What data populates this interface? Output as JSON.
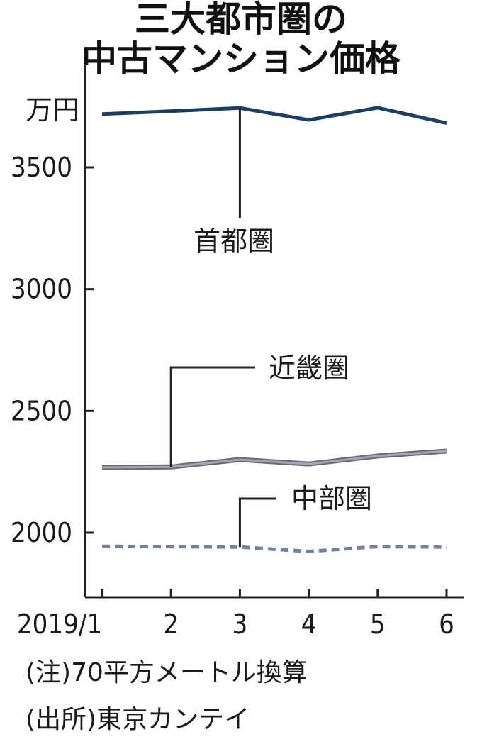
{
  "chart_data": {
    "type": "line",
    "title": [
      "三大都市圏の",
      "中古マンション価格"
    ],
    "unit": "万円",
    "categories": [
      "2019/1",
      "2",
      "3",
      "4",
      "5",
      "6"
    ],
    "ylim": [
      1750,
      3850
    ],
    "yticks": [
      2000,
      2500,
      3000,
      3500
    ],
    "grid": false,
    "series": [
      {
        "name": "首都圏",
        "values": [
          3719,
          3731,
          3744,
          3695,
          3745,
          3682
        ],
        "color": "#1d3f5e",
        "style": "solid"
      },
      {
        "name": "近畿圏",
        "values": [
          2268,
          2270,
          2300,
          2282,
          2315,
          2335
        ],
        "color": "#a8a4b3",
        "style": "solid-outlined"
      },
      {
        "name": "中部圏",
        "values": [
          1944,
          1943,
          1941,
          1923,
          1943,
          1941
        ],
        "color": "#6f82a0",
        "style": "dashed"
      }
    ],
    "notes": [
      "(注)70平方メートル換算",
      "(出所)東京カンテイ"
    ]
  }
}
